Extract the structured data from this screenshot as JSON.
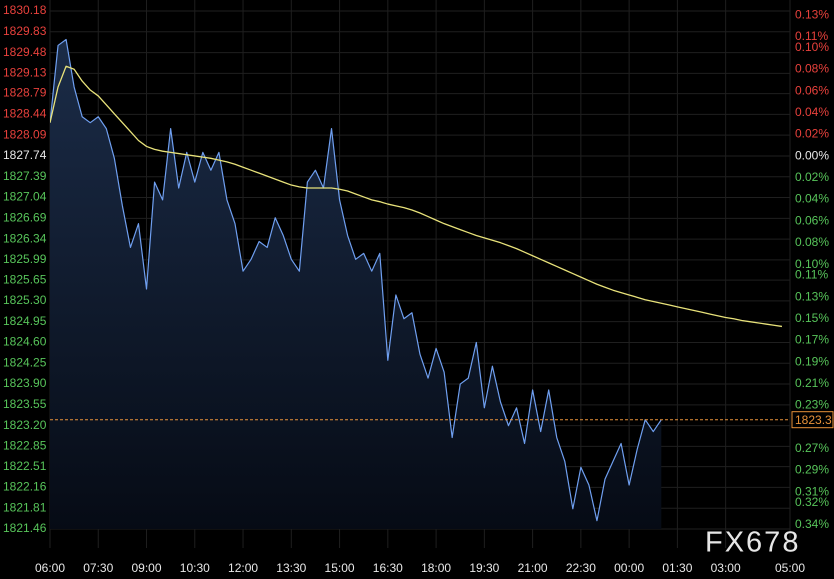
{
  "chart_data": {
    "type": "line",
    "x": [
      "06:00",
      "06:15",
      "06:30",
      "06:45",
      "07:00",
      "07:15",
      "07:30",
      "07:45",
      "08:00",
      "08:15",
      "08:30",
      "08:45",
      "09:00",
      "09:15",
      "09:30",
      "09:45",
      "10:00",
      "10:15",
      "10:30",
      "10:45",
      "11:00",
      "11:15",
      "11:30",
      "11:45",
      "12:00",
      "12:15",
      "12:30",
      "12:45",
      "13:00",
      "13:15",
      "13:30",
      "13:45",
      "14:00",
      "14:15",
      "14:30",
      "14:45",
      "15:00",
      "15:15",
      "15:30",
      "15:45",
      "16:00",
      "16:15",
      "16:30",
      "16:45",
      "17:00",
      "17:15",
      "17:30",
      "17:45",
      "18:00",
      "18:15",
      "18:30",
      "18:45",
      "19:00",
      "19:15",
      "19:30",
      "19:45",
      "20:00",
      "20:15",
      "20:30",
      "20:45",
      "21:00",
      "21:15",
      "21:30",
      "21:45",
      "22:00",
      "22:15",
      "22:30",
      "22:45",
      "23:00",
      "23:15",
      "23:30",
      "23:45",
      "00:00",
      "00:15",
      "00:30",
      "00:45",
      "01:00",
      "01:15",
      "01:30",
      "01:45",
      "02:00",
      "02:15",
      "02:30",
      "02:45",
      "03:00",
      "03:15",
      "03:30",
      "03:45",
      "04:00",
      "04:15",
      "04:30",
      "04:45"
    ],
    "series": [
      {
        "color": "#6f9ff0",
        "values": [
          1828.3,
          1829.6,
          1829.7,
          1828.9,
          1828.4,
          1828.3,
          1828.4,
          1828.2,
          1827.7,
          1826.9,
          1826.2,
          1826.6,
          1825.5,
          1827.3,
          1827.0,
          1828.2,
          1827.2,
          1827.8,
          1827.3,
          1827.8,
          1827.5,
          1827.8,
          1827.0,
          1826.6,
          1825.8,
          1826.0,
          1826.3,
          1826.2,
          1826.7,
          1826.4,
          1826.0,
          1825.8,
          1827.3,
          1827.5,
          1827.2,
          1828.2,
          1827.0,
          1826.4,
          1826.0,
          1826.1,
          1825.8,
          1826.1,
          1824.3,
          1825.4,
          1825.0,
          1825.1,
          1824.4,
          1824.0,
          1824.5,
          1824.1,
          1823.0,
          1823.9,
          1824.0,
          1824.6,
          1823.5,
          1824.2,
          1823.6,
          1823.2,
          1823.5,
          1822.9,
          1823.8,
          1823.1,
          1823.8,
          1823.0,
          1822.6,
          1821.8,
          1822.5,
          1822.2,
          1821.6,
          1822.3,
          1822.6,
          1822.9,
          1822.2,
          1822.8,
          1823.3,
          1823.1,
          1823.3,
          null,
          null,
          null,
          null,
          null,
          null,
          null,
          null,
          null,
          null,
          null,
          null,
          null,
          null,
          null
        ]
      },
      {
        "color": "#e8e27a",
        "values": [
          1828.3,
          1828.9,
          1829.25,
          1829.2,
          1829.0,
          1828.85,
          1828.75,
          1828.6,
          1828.45,
          1828.3,
          1828.15,
          1828.0,
          1827.9,
          1827.85,
          1827.82,
          1827.8,
          1827.78,
          1827.76,
          1827.74,
          1827.72,
          1827.7,
          1827.67,
          1827.64,
          1827.6,
          1827.55,
          1827.5,
          1827.45,
          1827.4,
          1827.35,
          1827.3,
          1827.25,
          1827.22,
          1827.2,
          1827.2,
          1827.2,
          1827.2,
          1827.18,
          1827.15,
          1827.1,
          1827.05,
          1827.0,
          1826.97,
          1826.93,
          1826.9,
          1826.87,
          1826.83,
          1826.78,
          1826.72,
          1826.66,
          1826.6,
          1826.55,
          1826.5,
          1826.45,
          1826.4,
          1826.36,
          1826.32,
          1826.28,
          1826.23,
          1826.18,
          1826.12,
          1826.06,
          1826.0,
          1825.94,
          1825.88,
          1825.82,
          1825.76,
          1825.7,
          1825.64,
          1825.58,
          1825.53,
          1825.48,
          1825.44,
          1825.4,
          1825.36,
          1825.32,
          1825.29,
          1825.26,
          1825.23,
          1825.2,
          1825.17,
          1825.14,
          1825.11,
          1825.08,
          1825.05,
          1825.02,
          1825.0,
          1824.97,
          1824.95,
          1824.93,
          1824.91,
          1824.89,
          1824.87
        ]
      }
    ],
    "xlim": [
      "06:00",
      "05:00"
    ],
    "xticks": [
      "06:00",
      "07:30",
      "09:00",
      "10:30",
      "12:00",
      "13:30",
      "15:00",
      "16:30",
      "18:00",
      "19:30",
      "21:00",
      "22:30",
      "00:00",
      "01:30",
      "03:00",
      "05:00"
    ],
    "ylim": [
      1821.46,
      1830.18
    ],
    "yticks": [
      1830.18,
      1829.83,
      1829.48,
      1829.13,
      1828.79,
      1828.44,
      1828.09,
      1827.74,
      1827.39,
      1827.04,
      1826.69,
      1826.34,
      1825.99,
      {
        "value": 1825.65,
        "label": "1825.65"
      },
      {
        "value": 1825.3,
        "label": "1825.30"
      },
      1824.95,
      {
        "value": 1824.6,
        "label": "1824.60"
      },
      1824.25,
      {
        "value": 1823.9,
        "label": "1823.90"
      },
      1823.55,
      {
        "value": 1823.2,
        "label": "1823.20"
      },
      1822.85,
      1822.51,
      1822.16,
      1821.81,
      1821.46
    ],
    "y2lim": [
      -0.344,
      0.134
    ],
    "y2ticks": [
      {
        "value": 0.13,
        "label": "0.13%"
      },
      {
        "value": 0.11,
        "label": "0.11%"
      },
      {
        "value": 0.1,
        "label": "0.10%"
      },
      {
        "value": 0.08,
        "label": "0.08%"
      },
      {
        "value": 0.06,
        "label": "0.06%"
      },
      {
        "value": 0.04,
        "label": "0.04%"
      },
      {
        "value": 0.02,
        "label": "0.02%"
      },
      {
        "value": 0,
        "label": "0.00%"
      },
      {
        "value": -0.02,
        "label": "0.02%"
      },
      {
        "value": -0.04,
        "label": "0.04%"
      },
      {
        "value": -0.06,
        "label": "0.06%"
      },
      {
        "value": -0.08,
        "label": "0.08%"
      },
      {
        "value": -0.1,
        "label": "0.10%"
      },
      {
        "value": -0.11,
        "label": "0.11%"
      },
      {
        "value": -0.13,
        "label": "0.13%"
      },
      {
        "value": -0.15,
        "label": "0.15%"
      },
      {
        "value": -0.17,
        "label": "0.17%"
      },
      {
        "value": -0.19,
        "label": "0.19%"
      },
      {
        "value": -0.21,
        "label": "0.21%"
      },
      {
        "value": -0.23,
        "label": "0.23%"
      },
      {
        "value": -0.27,
        "label": "0.27%"
      },
      {
        "value": -0.29,
        "label": "0.29%"
      },
      {
        "value": -0.31,
        "label": "0.31%"
      },
      {
        "value": -0.32,
        "label": "0.32%"
      },
      {
        "value": -0.34,
        "label": "0.34%"
      }
    ],
    "grid": true,
    "last_price": 1823.3,
    "watermark": "FX678"
  }
}
